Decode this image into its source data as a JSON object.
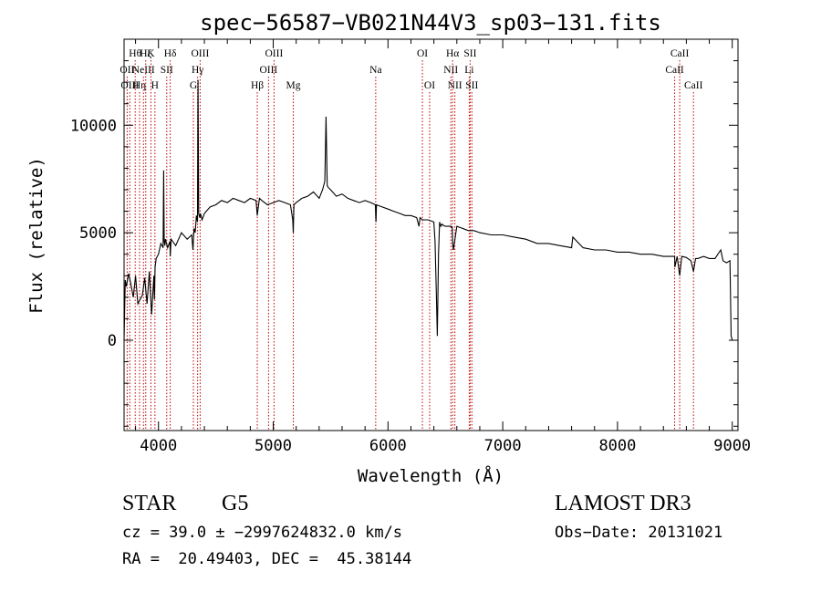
{
  "chart_data": {
    "type": "line",
    "title": "spec−56587−VB021N44V3_sp03−131.fits",
    "xlabel": "Wavelength (Å)",
    "ylabel": "Flux (relative)",
    "xlim": [
      3700,
      9050
    ],
    "ylim": [
      -4200,
      14000
    ],
    "x_ticks": [
      4000,
      5000,
      6000,
      7000,
      8000,
      9000
    ],
    "y_ticks": [
      0,
      5000,
      10000
    ],
    "x_minor_step": 200,
    "y_minor_step": 1000,
    "series": [
      {
        "name": "spectrum",
        "x": [
          3700,
          3710,
          3720,
          3740,
          3760,
          3780,
          3800,
          3820,
          3840,
          3860,
          3880,
          3900,
          3920,
          3940,
          3960,
          3965,
          3970,
          3980,
          4000,
          4020,
          4040,
          4045,
          4050,
          4055,
          4060,
          4080,
          4100,
          4102,
          4110,
          4150,
          4200,
          4250,
          4290,
          4300,
          4310,
          4320,
          4330,
          4340,
          4345,
          4350,
          4360,
          4365,
          4370,
          4380,
          4400,
          4450,
          4500,
          4550,
          4600,
          4650,
          4700,
          4750,
          4800,
          4850,
          4861,
          4880,
          4900,
          4950,
          5000,
          5050,
          5100,
          5150,
          5170,
          5175,
          5180,
          5200,
          5250,
          5300,
          5350,
          5400,
          5430,
          5450,
          5460,
          5470,
          5480,
          5500,
          5550,
          5600,
          5650,
          5700,
          5750,
          5800,
          5850,
          5890,
          5893,
          5896,
          5900,
          5950,
          6000,
          6050,
          6100,
          6150,
          6200,
          6250,
          6270,
          6280,
          6300,
          6350,
          6400,
          6410,
          6420,
          6430,
          6440,
          6450,
          6460,
          6470,
          6480,
          6500,
          6550,
          6560,
          6563,
          6570,
          6600,
          6650,
          6700,
          6750,
          6800,
          6900,
          7000,
          7100,
          7200,
          7300,
          7400,
          7500,
          7600,
          7610,
          7700,
          7800,
          7900,
          8000,
          8100,
          8200,
          8300,
          8400,
          8498,
          8500,
          8520,
          8542,
          8560,
          8600,
          8640,
          8662,
          8680,
          8700,
          8750,
          8800,
          8850,
          8900,
          8920,
          8950,
          8980,
          8990,
          9000
        ],
        "y": [
          0,
          2800,
          2500,
          3100,
          2600,
          2000,
          3000,
          1700,
          1900,
          2100,
          2900,
          1700,
          3200,
          1200,
          3000,
          1900,
          3400,
          3800,
          4000,
          4500,
          4300,
          7900,
          4600,
          4400,
          4700,
          4300,
          4600,
          3900,
          4700,
          4400,
          5000,
          4700,
          4900,
          4200,
          5200,
          5000,
          5800,
          5500,
          12100,
          5900,
          5700,
          5900,
          5800,
          5600,
          5900,
          6200,
          6300,
          6500,
          6400,
          6600,
          6500,
          6400,
          6600,
          6500,
          5800,
          6600,
          6500,
          6300,
          6400,
          6500,
          6400,
          6300,
          5600,
          5000,
          6300,
          6400,
          6600,
          6700,
          6900,
          6600,
          7000,
          7400,
          10400,
          7200,
          7100,
          7000,
          6700,
          6800,
          6600,
          6500,
          6400,
          6500,
          6400,
          6300,
          5700,
          5500,
          6300,
          6200,
          6100,
          6000,
          5900,
          5800,
          5800,
          5700,
          5300,
          5700,
          5600,
          5600,
          5500,
          4600,
          2400,
          200,
          4000,
          5500,
          5300,
          5400,
          5350,
          5300,
          5300,
          5200,
          4600,
          4200,
          5300,
          5200,
          5100,
          5100,
          5000,
          4900,
          4900,
          4800,
          4700,
          4500,
          4500,
          4400,
          4300,
          4800,
          4300,
          4200,
          4200,
          4100,
          4100,
          4000,
          4000,
          3900,
          3900,
          3400,
          3900,
          3000,
          3900,
          3850,
          3700,
          3200,
          3800,
          3800,
          3900,
          3800,
          3800,
          4200,
          3700,
          3600,
          3700,
          200,
          0
        ]
      }
    ],
    "line_markers": [
      {
        "wavelength": 3727,
        "label": "OII",
        "row": 2
      },
      {
        "wavelength": 3750,
        "label": "OIII",
        "row": 3
      },
      {
        "wavelength": 3797,
        "label": "Hθ",
        "row": 1
      },
      {
        "wavelength": 3835,
        "label": "Hη",
        "row": 3
      },
      {
        "wavelength": 3869,
        "label": "NeIII",
        "row": 2
      },
      {
        "wavelength": 3889,
        "label": "Hζ",
        "row": 1
      },
      {
        "wavelength": 3934,
        "label": "K",
        "row": 1
      },
      {
        "wavelength": 3969,
        "label": "H",
        "row": 3
      },
      {
        "wavelength": 4072,
        "label": "SII",
        "row": 2
      },
      {
        "wavelength": 4102,
        "label": "Hδ",
        "row": 1
      },
      {
        "wavelength": 4304,
        "label": "G",
        "row": 3
      },
      {
        "wavelength": 4341,
        "label": "Hγ",
        "row": 2
      },
      {
        "wavelength": 4363,
        "label": "OIII",
        "row": 1
      },
      {
        "wavelength": 4861,
        "label": "Hβ",
        "row": 3
      },
      {
        "wavelength": 4959,
        "label": "OIII",
        "row": 2
      },
      {
        "wavelength": 5007,
        "label": "OIII",
        "row": 1
      },
      {
        "wavelength": 5175,
        "label": "Mg",
        "row": 3
      },
      {
        "wavelength": 5893,
        "label": "Na",
        "row": 2
      },
      {
        "wavelength": 6300,
        "label": "OI",
        "row": 1
      },
      {
        "wavelength": 6363,
        "label": "OI",
        "row": 3
      },
      {
        "wavelength": 6548,
        "label": "NII",
        "row": 2
      },
      {
        "wavelength": 6563,
        "label": "Hα",
        "row": 1
      },
      {
        "wavelength": 6583,
        "label": "NII",
        "row": 3
      },
      {
        "wavelength": 6708,
        "label": "Li",
        "row": 2
      },
      {
        "wavelength": 6716,
        "label": "SII",
        "row": 1
      },
      {
        "wavelength": 6731,
        "label": "SII",
        "row": 3
      },
      {
        "wavelength": 8498,
        "label": "CaII",
        "row": 2
      },
      {
        "wavelength": 8542,
        "label": "CaII",
        "row": 1
      },
      {
        "wavelength": 8662,
        "label": "CaII",
        "row": 3
      }
    ]
  },
  "info": {
    "class_label": "STAR",
    "subclass": "G5",
    "survey": "LAMOST DR3",
    "cz_line": "cz = 39.0 ± −2997624832.0 km/s",
    "obs_date_line": "Obs−Date: 20131021",
    "radec_line": "RA =  20.49403, DEC =  45.38144"
  }
}
